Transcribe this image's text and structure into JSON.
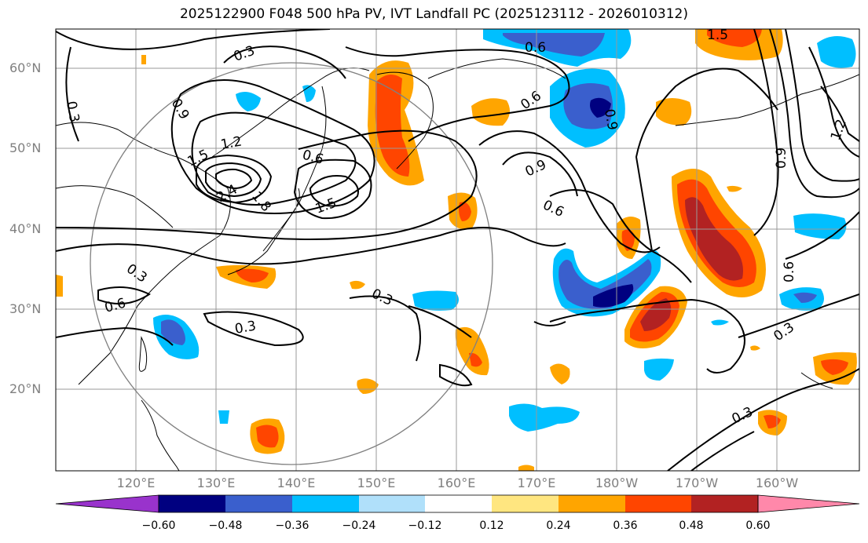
{
  "title": "2025122900 F048 500 hPa PV, IVT Landfall PC (2025123112 - 2026010312)",
  "lat_labels": [
    "60°N",
    "50°N",
    "40°N",
    "30°N",
    "20°N"
  ],
  "lon_labels": [
    "120°E",
    "130°E",
    "140°E",
    "150°E",
    "160°E",
    "170°E",
    "180°W",
    "170°W",
    "160°W"
  ],
  "contour_labels": [
    "0.3",
    "0.6",
    "0.9",
    "1.2",
    "1.5",
    "1.8",
    "2.4"
  ],
  "colorbar": {
    "ticks": [
      "−0.60",
      "−0.48",
      "−0.36",
      "−0.24",
      "−0.12",
      "0.12",
      "0.24",
      "0.36",
      "0.48",
      "0.60"
    ],
    "colors": [
      "#9933cc",
      "#000080",
      "#3a5fcd",
      "#00bfff",
      "#b0e0fa",
      "#ffffff",
      "#ffe680",
      "#ffa500",
      "#ff4500",
      "#b22222",
      "#ff88aa"
    ]
  },
  "colors": {
    "pos_low": "#ffe680",
    "pos_mid": "#ffa500",
    "pos_high": "#ff4500",
    "pos_max": "#b22222",
    "neg_low": "#b0e0fa",
    "neg_mid": "#00bfff",
    "neg_high": "#3a5fcd",
    "neg_max": "#000080"
  }
}
